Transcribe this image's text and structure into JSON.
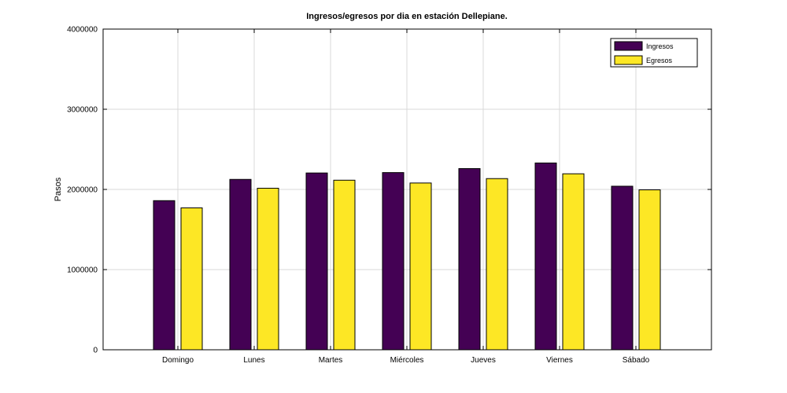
{
  "chart_data": {
    "type": "bar",
    "title": "Ingresos/egresos por dia en estación Dellepiane.",
    "xlabel": "",
    "ylabel": "Pasos",
    "categories": [
      "Domingo",
      "Lunes",
      "Martes",
      "Miércoles",
      "Jueves",
      "Viernes",
      "Sábado"
    ],
    "series": [
      {
        "name": "Ingresos",
        "color": "#440154",
        "values": [
          1860000,
          2125000,
          2205000,
          2210000,
          2260000,
          2330000,
          2040000
        ]
      },
      {
        "name": "Egresos",
        "color": "#fde725",
        "values": [
          1770000,
          2015000,
          2115000,
          2080000,
          2135000,
          2195000,
          1995000
        ]
      }
    ],
    "ylim": [
      0,
      4000000
    ],
    "yticks": [
      "0",
      "1000000",
      "2000000",
      "3000000",
      "4000000"
    ],
    "grid": true,
    "legend_position": "top-right"
  }
}
